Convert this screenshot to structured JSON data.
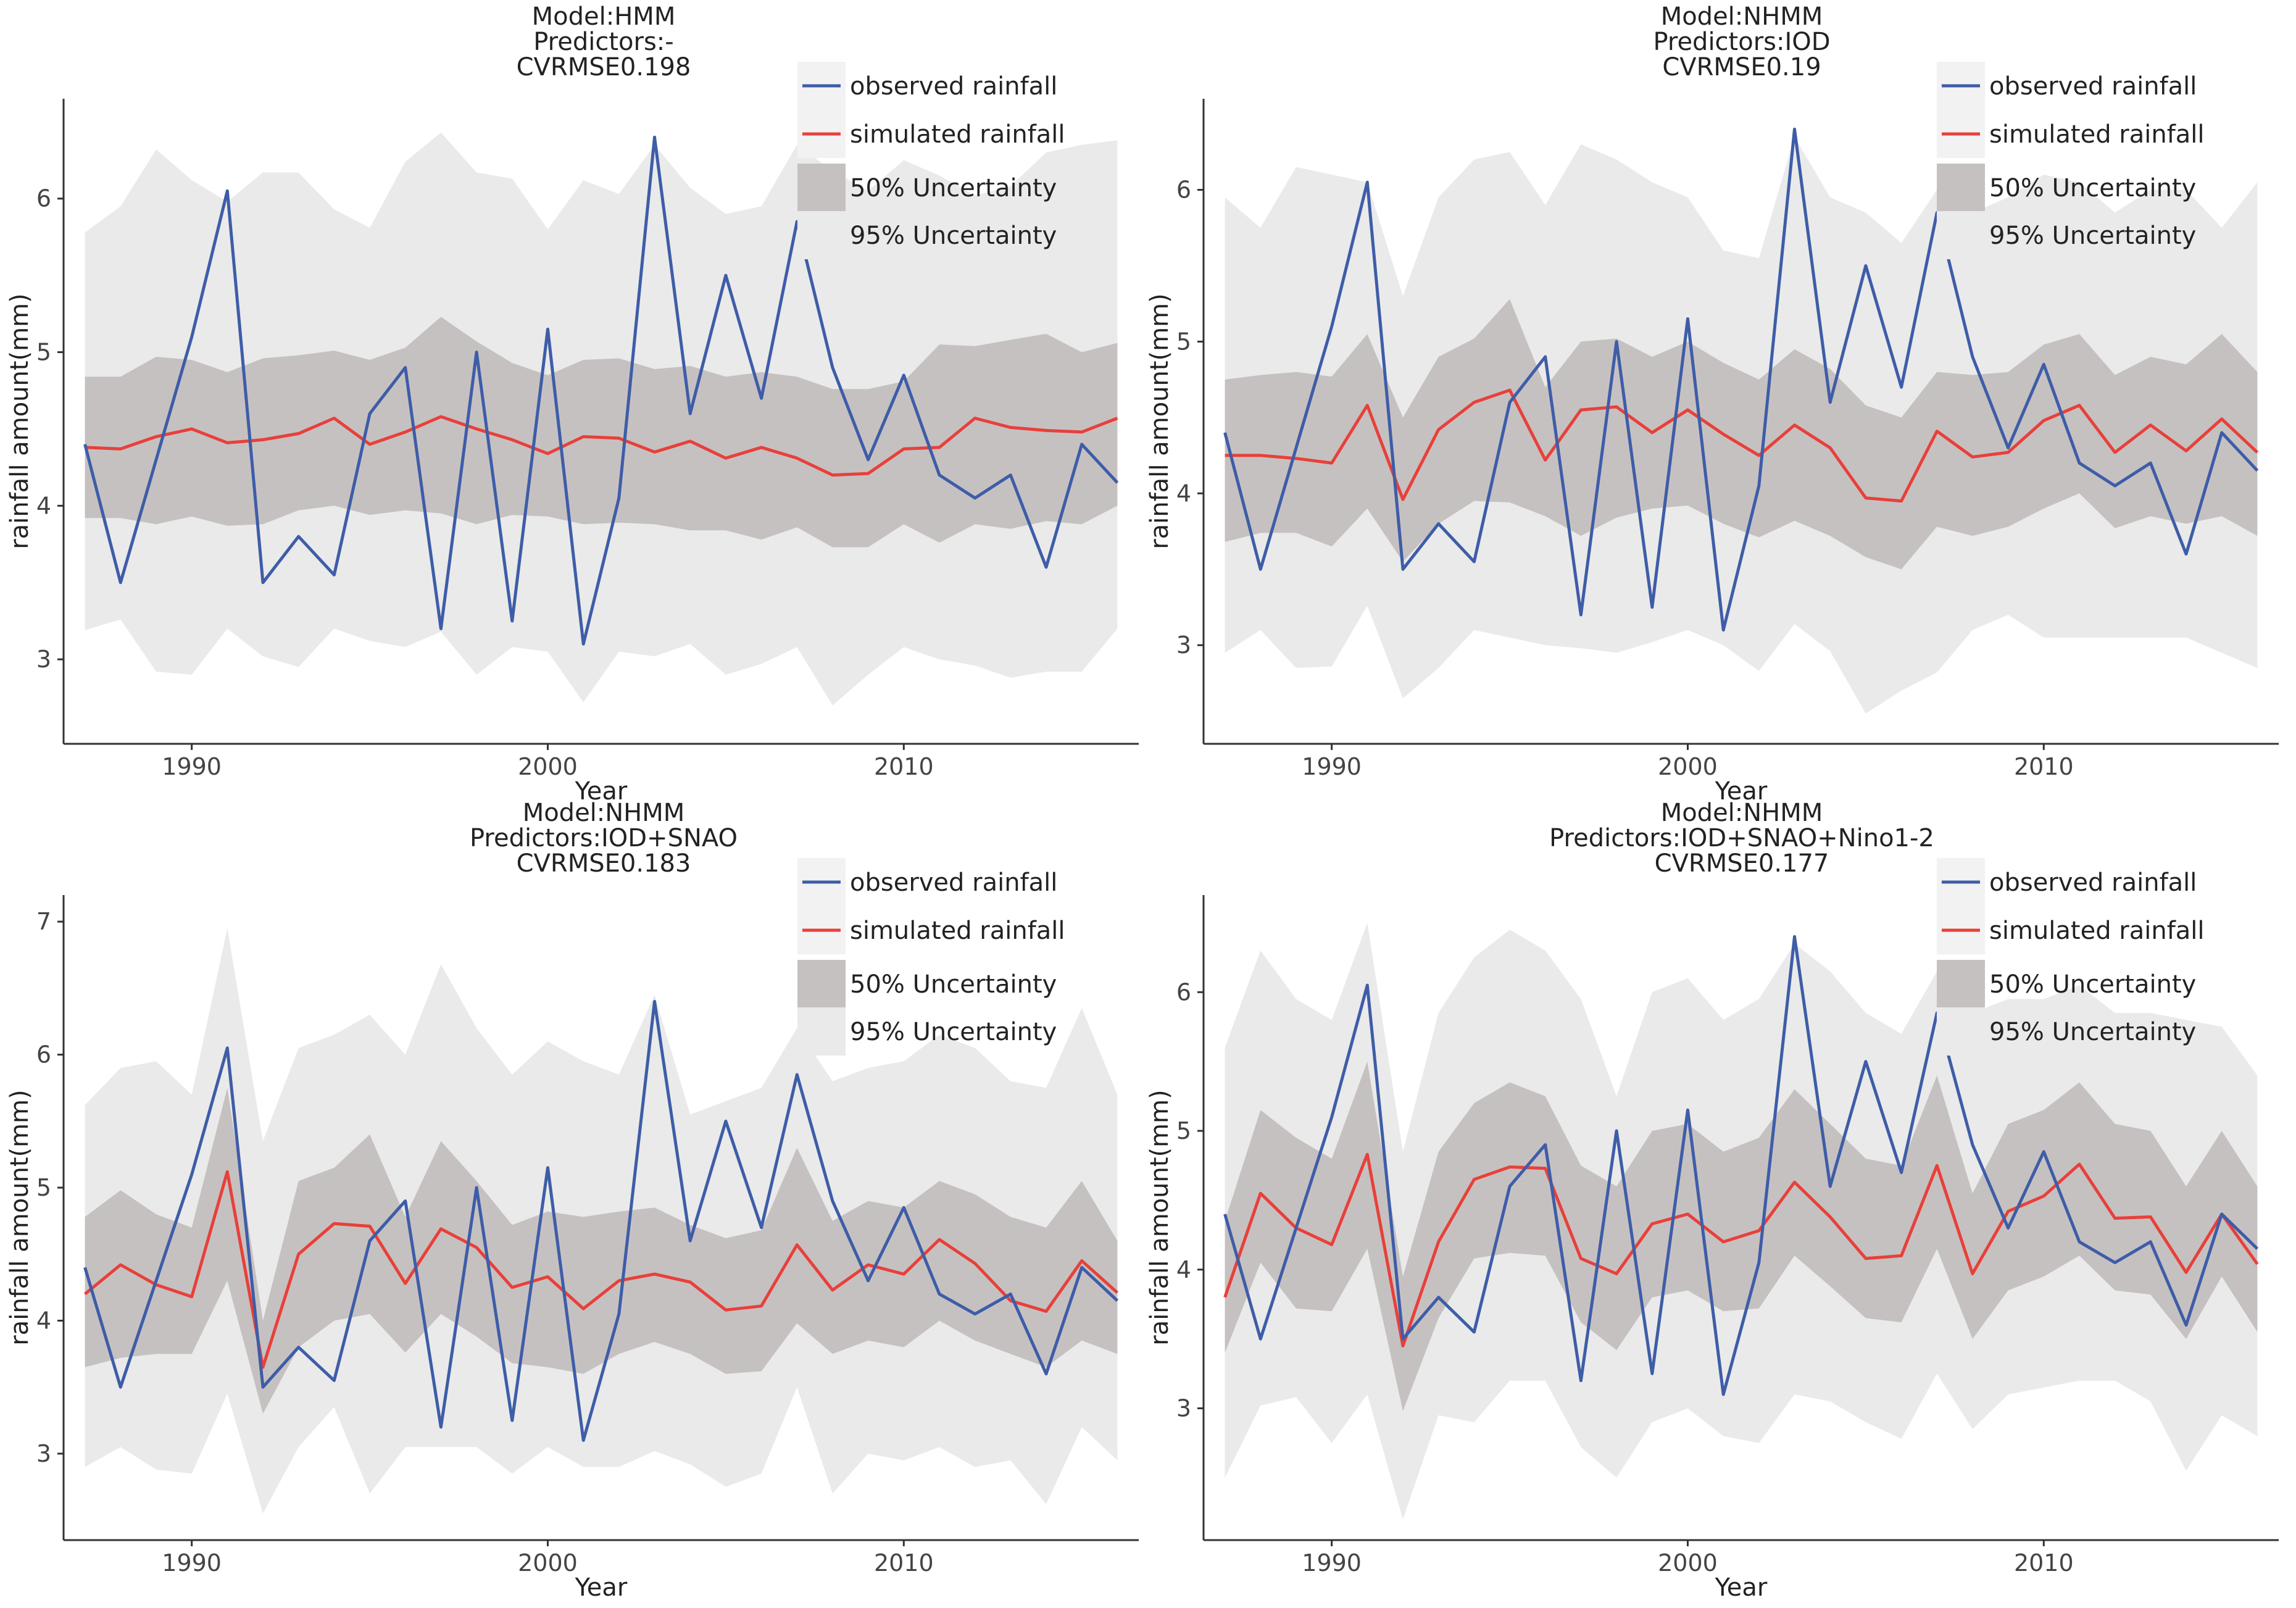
{
  "colors": {
    "observed": "#3e5da8",
    "simulated": "#e8403a",
    "band50": "#c6c1c1",
    "band95": "#eaeaea",
    "axis": "#333333",
    "legend_key_bg": "#f2f2f2"
  },
  "legend": {
    "observed": "observed rainfall",
    "simulated": "simulated rainfall",
    "u50": "50% Uncertainty",
    "u95": "95% Uncertainty"
  },
  "chart_data": [
    {
      "type": "line",
      "title_lines": [
        "Model:HMM",
        "Predictors:-",
        "CVRMSE0.198"
      ],
      "xlabel": "Year",
      "ylabel": "rainfall amount(mm)",
      "xlim": [
        1986.4,
        2016.6
      ],
      "ylim": [
        2.45,
        6.65
      ],
      "xticks": [
        1990,
        2000,
        2010
      ],
      "yticks": [
        3,
        4,
        5,
        6
      ],
      "x": [
        1987,
        1988,
        1989,
        1990,
        1991,
        1992,
        1993,
        1994,
        1995,
        1996,
        1997,
        1998,
        1999,
        2000,
        2001,
        2002,
        2003,
        2004,
        2005,
        2006,
        2007,
        2008,
        2009,
        2010,
        2011,
        2012,
        2013,
        2014,
        2015,
        2016
      ],
      "series": [
        {
          "name": "observed rainfall",
          "values": [
            4.4,
            3.5,
            4.3,
            5.1,
            6.05,
            3.5,
            3.8,
            3.55,
            4.6,
            4.9,
            3.2,
            5.0,
            3.25,
            5.15,
            3.1,
            4.05,
            6.4,
            4.6,
            5.5,
            4.7,
            5.85,
            4.9,
            4.3,
            4.85,
            4.2,
            4.05,
            4.2,
            3.6,
            4.4,
            4.15
          ]
        },
        {
          "name": "simulated rainfall",
          "values": [
            4.38,
            4.37,
            4.45,
            4.5,
            4.41,
            4.43,
            4.47,
            4.57,
            4.4,
            4.48,
            4.58,
            4.5,
            4.43,
            4.34,
            4.45,
            4.44,
            4.35,
            4.42,
            4.31,
            4.38,
            4.31,
            4.2,
            4.21,
            4.37,
            4.38,
            4.57,
            4.51,
            4.49,
            4.48,
            4.57
          ]
        },
        {
          "name": "50% Uncertainty",
          "lower": [
            3.92,
            3.92,
            3.88,
            3.93,
            3.87,
            3.88,
            3.97,
            4.0,
            3.94,
            3.97,
            3.95,
            3.88,
            3.94,
            3.93,
            3.88,
            3.89,
            3.88,
            3.84,
            3.84,
            3.78,
            3.86,
            3.73,
            3.73,
            3.88,
            3.76,
            3.88,
            3.85,
            3.9,
            3.88,
            4.0
          ],
          "upper": [
            4.84,
            4.84,
            4.97,
            4.95,
            4.87,
            4.96,
            4.98,
            5.01,
            4.95,
            5.03,
            5.23,
            5.07,
            4.93,
            4.85,
            4.95,
            4.96,
            4.89,
            4.91,
            4.84,
            4.87,
            4.84,
            4.76,
            4.76,
            4.81,
            5.05,
            5.04,
            5.08,
            5.12,
            5.0,
            5.06
          ]
        },
        {
          "name": "95% Uncertainty",
          "lower": [
            3.19,
            3.26,
            2.92,
            2.9,
            3.2,
            3.02,
            2.95,
            3.2,
            3.12,
            3.08,
            3.18,
            2.9,
            3.08,
            3.05,
            2.72,
            3.05,
            3.02,
            3.1,
            2.9,
            2.97,
            3.08,
            2.7,
            2.9,
            3.08,
            3.0,
            2.96,
            2.88,
            2.92,
            2.92,
            3.2
          ],
          "upper": [
            5.78,
            5.95,
            6.32,
            6.12,
            5.98,
            6.17,
            6.17,
            5.93,
            5.81,
            6.24,
            6.43,
            6.17,
            6.13,
            5.8,
            6.12,
            6.03,
            6.35,
            6.07,
            5.9,
            5.95,
            6.35,
            6.18,
            6.05,
            6.25,
            6.15,
            6.02,
            6.08,
            6.3,
            6.35,
            6.38
          ]
        }
      ]
    },
    {
      "type": "line",
      "title_lines": [
        "Model:NHMM",
        "Predictors:IOD",
        "CVRMSE0.19"
      ],
      "xlabel": "Year",
      "ylabel": "rainfall amount(mm)",
      "xlim": [
        1986.4,
        2016.6
      ],
      "ylim": [
        2.35,
        6.6
      ],
      "xticks": [
        1990,
        2000,
        2010
      ],
      "yticks": [
        3,
        4,
        5,
        6
      ],
      "x": [
        1987,
        1988,
        1989,
        1990,
        1991,
        1992,
        1993,
        1994,
        1995,
        1996,
        1997,
        1998,
        1999,
        2000,
        2001,
        2002,
        2003,
        2004,
        2005,
        2006,
        2007,
        2008,
        2009,
        2010,
        2011,
        2012,
        2013,
        2014,
        2015,
        2016
      ],
      "series": [
        {
          "name": "observed rainfall",
          "values": [
            4.4,
            3.5,
            4.3,
            5.1,
            6.05,
            3.5,
            3.8,
            3.55,
            4.6,
            4.9,
            3.2,
            5.0,
            3.25,
            5.15,
            3.1,
            4.05,
            6.4,
            4.6,
            5.5,
            4.7,
            5.85,
            4.9,
            4.3,
            4.85,
            4.2,
            4.05,
            4.2,
            3.6,
            4.4,
            4.15
          ]
        },
        {
          "name": "simulated rainfall",
          "values": [
            4.25,
            4.25,
            4.23,
            4.2,
            4.58,
            3.96,
            4.42,
            4.6,
            4.68,
            4.22,
            4.55,
            4.57,
            4.4,
            4.55,
            4.39,
            4.25,
            4.45,
            4.3,
            3.97,
            3.95,
            4.41,
            4.24,
            4.27,
            4.48,
            4.58,
            4.27,
            4.45,
            4.28,
            4.49,
            4.27
          ]
        },
        {
          "name": "50% Uncertainty",
          "lower": [
            3.68,
            3.74,
            3.74,
            3.65,
            3.9,
            3.55,
            3.8,
            3.95,
            3.94,
            3.85,
            3.72,
            3.84,
            3.9,
            3.92,
            3.8,
            3.71,
            3.82,
            3.72,
            3.58,
            3.5,
            3.78,
            3.72,
            3.78,
            3.9,
            4.0,
            3.77,
            3.85,
            3.8,
            3.85,
            3.72
          ],
          "upper": [
            4.75,
            4.78,
            4.8,
            4.77,
            5.05,
            4.5,
            4.9,
            5.02,
            5.28,
            4.7,
            5.0,
            5.02,
            4.9,
            5.0,
            4.86,
            4.75,
            4.95,
            4.82,
            4.58,
            4.5,
            4.8,
            4.78,
            4.8,
            4.98,
            5.05,
            4.78,
            4.9,
            4.85,
            5.05,
            4.8
          ]
        },
        {
          "name": "95% Uncertainty",
          "lower": [
            2.95,
            3.1,
            2.85,
            2.86,
            3.26,
            2.65,
            2.85,
            3.1,
            3.05,
            3.0,
            2.98,
            2.95,
            3.02,
            3.1,
            3.0,
            2.83,
            3.14,
            2.96,
            2.55,
            2.7,
            2.82,
            3.1,
            3.2,
            3.05,
            3.05,
            3.05,
            3.05,
            3.05,
            2.95,
            2.85
          ],
          "upper": [
            5.95,
            5.75,
            6.15,
            6.1,
            6.05,
            5.3,
            5.95,
            6.2,
            6.25,
            5.9,
            6.3,
            6.2,
            6.05,
            5.95,
            5.6,
            5.55,
            6.35,
            5.95,
            5.85,
            5.65,
            6.0,
            5.85,
            5.95,
            6.1,
            6.05,
            5.85,
            6.0,
            6.0,
            5.75,
            6.05
          ]
        }
      ]
    },
    {
      "type": "line",
      "title_lines": [
        "Model:NHMM",
        "Predictors:IOD+SNAO",
        "CVRMSE0.183"
      ],
      "xlabel": "Year",
      "ylabel": "rainfall amount(mm)",
      "xlim": [
        1986.4,
        2016.6
      ],
      "ylim": [
        2.35,
        7.2
      ],
      "xticks": [
        1990,
        2000,
        2010
      ],
      "yticks": [
        3,
        4,
        5,
        6,
        7
      ],
      "x": [
        1987,
        1988,
        1989,
        1990,
        1991,
        1992,
        1993,
        1994,
        1995,
        1996,
        1997,
        1998,
        1999,
        2000,
        2001,
        2002,
        2003,
        2004,
        2005,
        2006,
        2007,
        2008,
        2009,
        2010,
        2011,
        2012,
        2013,
        2014,
        2015,
        2016
      ],
      "series": [
        {
          "name": "observed rainfall",
          "values": [
            4.4,
            3.5,
            4.3,
            5.1,
            6.05,
            3.5,
            3.8,
            3.55,
            4.6,
            4.9,
            3.2,
            5.0,
            3.25,
            5.15,
            3.1,
            4.05,
            6.4,
            4.6,
            5.5,
            4.7,
            5.85,
            4.9,
            4.3,
            4.85,
            4.2,
            4.05,
            4.2,
            3.6,
            4.4,
            4.15
          ]
        },
        {
          "name": "simulated rainfall",
          "values": [
            4.2,
            4.42,
            4.27,
            4.18,
            5.12,
            3.65,
            4.5,
            4.73,
            4.71,
            4.28,
            4.69,
            4.55,
            4.25,
            4.33,
            4.09,
            4.3,
            4.35,
            4.29,
            4.08,
            4.11,
            4.57,
            4.23,
            4.42,
            4.35,
            4.61,
            4.43,
            4.15,
            4.07,
            4.45,
            4.21
          ]
        },
        {
          "name": "50% Uncertainty",
          "lower": [
            3.65,
            3.72,
            3.75,
            3.75,
            4.3,
            3.3,
            3.8,
            4.0,
            4.05,
            3.76,
            4.05,
            3.88,
            3.68,
            3.65,
            3.6,
            3.75,
            3.84,
            3.75,
            3.6,
            3.62,
            3.98,
            3.75,
            3.85,
            3.8,
            4.0,
            3.85,
            3.75,
            3.65,
            3.85,
            3.75
          ],
          "upper": [
            4.78,
            4.98,
            4.8,
            4.7,
            5.75,
            4.0,
            5.05,
            5.15,
            5.4,
            4.78,
            5.35,
            5.05,
            4.72,
            4.82,
            4.78,
            4.82,
            4.85,
            4.72,
            4.62,
            4.68,
            5.3,
            4.75,
            4.9,
            4.85,
            5.05,
            4.95,
            4.78,
            4.7,
            5.05,
            4.6
          ]
        },
        {
          "name": "95% Uncertainty",
          "lower": [
            2.9,
            3.05,
            2.88,
            2.85,
            3.45,
            2.55,
            3.05,
            3.35,
            2.7,
            3.05,
            3.05,
            3.05,
            2.85,
            3.05,
            2.9,
            2.9,
            3.02,
            2.92,
            2.75,
            2.85,
            3.5,
            2.7,
            3.0,
            2.95,
            3.05,
            2.9,
            2.95,
            2.62,
            3.2,
            2.95
          ],
          "upper": [
            5.62,
            5.9,
            5.95,
            5.7,
            6.95,
            5.35,
            6.05,
            6.15,
            6.3,
            6.0,
            6.68,
            6.2,
            5.85,
            6.1,
            5.95,
            5.85,
            6.45,
            5.55,
            5.65,
            5.75,
            6.2,
            5.8,
            5.9,
            5.95,
            6.15,
            6.05,
            5.8,
            5.75,
            6.35,
            5.7
          ]
        }
      ]
    },
    {
      "type": "line",
      "title_lines": [
        "Model:NHMM",
        "Predictors:IOD+SNAO+Nino1-2",
        "CVRMSE0.177"
      ],
      "xlabel": "Year",
      "ylabel": "rainfall amount(mm)",
      "xlim": [
        1986.4,
        2016.6
      ],
      "ylim": [
        2.05,
        6.7
      ],
      "xticks": [
        1990,
        2000,
        2010
      ],
      "yticks": [
        3,
        4,
        5,
        6
      ],
      "x": [
        1987,
        1988,
        1989,
        1990,
        1991,
        1992,
        1993,
        1994,
        1995,
        1996,
        1997,
        1998,
        1999,
        2000,
        2001,
        2002,
        2003,
        2004,
        2005,
        2006,
        2007,
        2008,
        2009,
        2010,
        2011,
        2012,
        2013,
        2014,
        2015,
        2016
      ],
      "series": [
        {
          "name": "observed rainfall",
          "values": [
            4.4,
            3.5,
            4.3,
            5.1,
            6.05,
            3.5,
            3.8,
            3.55,
            4.6,
            4.9,
            3.2,
            5.0,
            3.25,
            5.15,
            3.1,
            4.05,
            6.4,
            4.6,
            5.5,
            4.7,
            5.85,
            4.9,
            4.3,
            4.85,
            4.2,
            4.05,
            4.2,
            3.6,
            4.4,
            4.15
          ]
        },
        {
          "name": "simulated rainfall",
          "values": [
            3.8,
            4.55,
            4.3,
            4.18,
            4.83,
            3.45,
            4.2,
            4.65,
            4.74,
            4.73,
            4.08,
            3.97,
            4.33,
            4.4,
            4.2,
            4.28,
            4.63,
            4.38,
            4.08,
            4.1,
            4.75,
            3.97,
            4.42,
            4.53,
            4.76,
            4.37,
            4.38,
            3.98,
            4.4,
            4.04
          ]
        },
        {
          "name": "50% Uncertainty",
          "lower": [
            3.4,
            4.05,
            3.72,
            3.7,
            4.15,
            2.98,
            3.65,
            4.08,
            4.12,
            4.1,
            3.62,
            3.42,
            3.8,
            3.85,
            3.7,
            3.72,
            4.1,
            3.88,
            3.65,
            3.62,
            4.15,
            3.5,
            3.85,
            3.95,
            4.1,
            3.85,
            3.82,
            3.5,
            3.95,
            3.55
          ],
          "upper": [
            4.35,
            5.15,
            4.95,
            4.8,
            5.5,
            3.95,
            4.85,
            5.2,
            5.35,
            5.25,
            4.75,
            4.6,
            5.0,
            5.05,
            4.85,
            4.95,
            5.3,
            5.05,
            4.8,
            4.75,
            5.4,
            4.55,
            5.05,
            5.15,
            5.35,
            5.05,
            5.0,
            4.6,
            5.0,
            4.6
          ]
        },
        {
          "name": "95% Uncertainty",
          "lower": [
            2.5,
            3.02,
            3.08,
            2.75,
            3.1,
            2.2,
            2.95,
            2.9,
            3.2,
            3.2,
            2.72,
            2.5,
            2.9,
            3.0,
            2.8,
            2.75,
            3.1,
            3.05,
            2.9,
            2.78,
            3.25,
            2.85,
            3.1,
            3.15,
            3.2,
            3.2,
            3.05,
            2.55,
            2.95,
            2.8
          ],
          "upper": [
            5.6,
            6.3,
            5.95,
            5.8,
            6.5,
            4.85,
            5.85,
            6.25,
            6.45,
            6.3,
            5.95,
            5.25,
            6.0,
            6.1,
            5.8,
            5.95,
            6.35,
            6.15,
            5.85,
            5.7,
            6.15,
            5.85,
            5.95,
            5.95,
            6.05,
            5.85,
            5.85,
            5.8,
            5.75,
            5.4
          ]
        }
      ]
    }
  ]
}
